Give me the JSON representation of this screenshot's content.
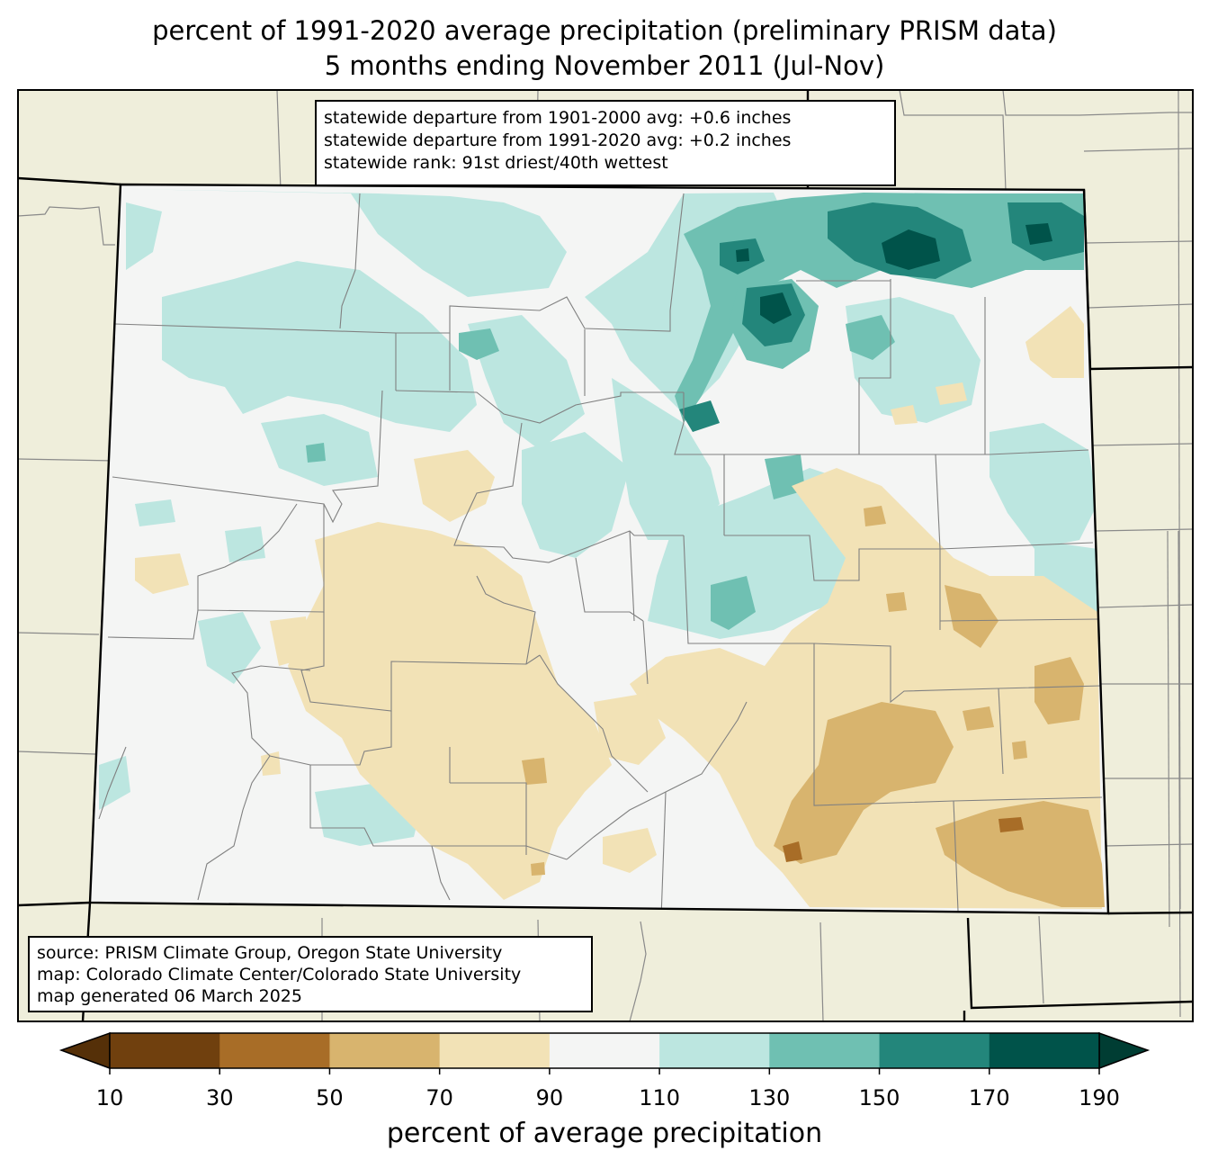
{
  "title": {
    "line1": "percent of 1991-2020 average precipitation (preliminary PRISM data)",
    "line2": "5 months ending November 2011 (Jul-Nov)"
  },
  "stats_box": {
    "line1": "statewide departure from 1901-2000 avg: +0.6 inches",
    "line2": "statewide departure from 1991-2020 avg: +0.2 inches",
    "line3": "statewide rank: 91st driest/40th wettest"
  },
  "source_box": {
    "line1": "source: PRISM Climate Group, Oregon State University",
    "line2": "map: Colorado Climate Center/Colorado State University",
    "line3": "map generated 06 March 2025"
  },
  "colorbar": {
    "label": "percent of average precipitation",
    "ticks": [
      "10",
      "30",
      "50",
      "70",
      "90",
      "110",
      "130",
      "150",
      "170",
      "190"
    ],
    "colors": [
      "#70400e",
      "#a86d27",
      "#d8b46e",
      "#f2e2b6",
      "#f4f5f4",
      "#bce6e0",
      "#6fc0b2",
      "#23867b",
      "#00534a"
    ],
    "under_color": "#553008",
    "over_color": "#003d33"
  },
  "map_colors": {
    "background": "#efeedb",
    "state_fill": "#f4f5f4",
    "county_line": "#808080"
  }
}
